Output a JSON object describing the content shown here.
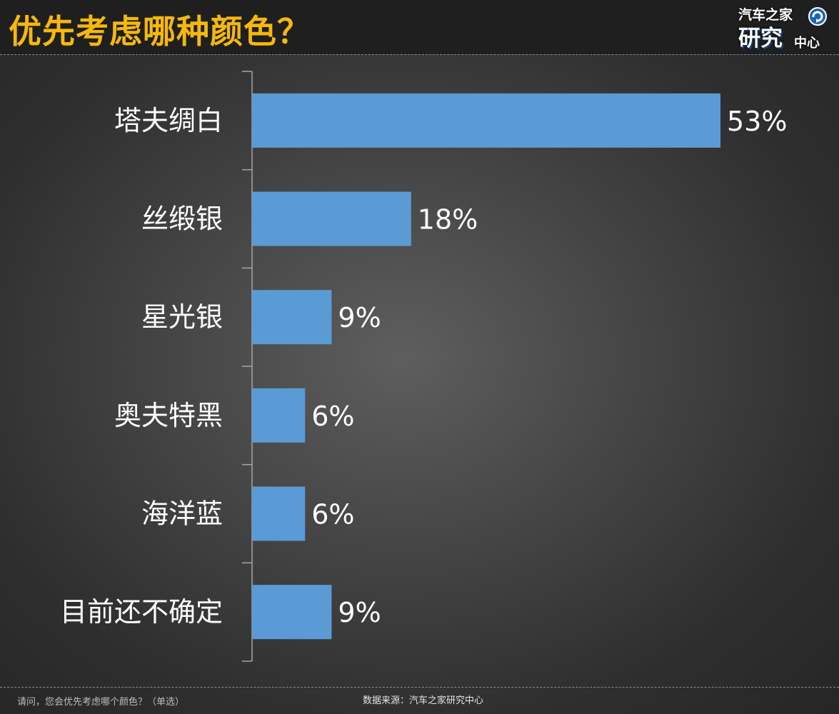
{
  "header": {
    "title": "优先考虑哪种颜色？",
    "logo": {
      "line1": "汽车之家",
      "line2": "研究",
      "line3": "中心",
      "icon": "refresh-arrow-icon"
    }
  },
  "chart_data": {
    "type": "bar",
    "orientation": "horizontal",
    "categories": [
      "塔夫绸白",
      "丝缎银",
      "星光银",
      "奥夫特黑",
      "海洋蓝",
      "目前还不确定"
    ],
    "values": [
      53,
      18,
      9,
      6,
      6,
      9
    ],
    "value_labels": [
      "53%",
      "18%",
      "9%",
      "6%",
      "6%",
      "9%"
    ],
    "unit": "%",
    "title": "优先考虑哪种颜色？",
    "xlabel": "",
    "ylabel": "",
    "xlim": [
      0,
      53
    ],
    "grid": false,
    "legend": "none",
    "bar_color": "#5b9bd5"
  },
  "footer": {
    "question": "请问，您会优先考虑哪个颜色？（单选）",
    "source": "数据来源：汽车之家研究中心"
  },
  "colors": {
    "title": "#f6b80d",
    "bar": "#5b9bd5",
    "text": "#ffffff",
    "header_bg": "#1f1f1f"
  }
}
